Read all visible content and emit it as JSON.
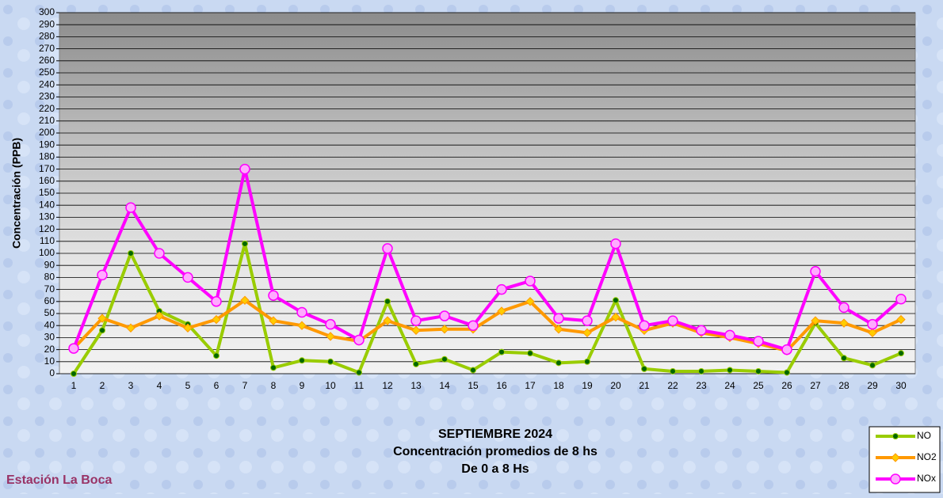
{
  "chart_data": {
    "type": "line",
    "title_lines": [
      "SEPTIEMBRE 2024",
      "Concentración promedios de 8 hs",
      "De 0 a 8 Hs"
    ],
    "annotation": "Estación La Boca",
    "y_label": "Concentración  (PPB)",
    "categories": [
      "1",
      "2",
      "3",
      "4",
      "5",
      "6",
      "7",
      "8",
      "9",
      "10",
      "11",
      "12",
      "13",
      "14",
      "15",
      "16",
      "17",
      "18",
      "19",
      "20",
      "21",
      "22",
      "23",
      "24",
      "25",
      "26",
      "27",
      "28",
      "29",
      "30"
    ],
    "series": [
      {
        "name": "NO",
        "color": "#99cc00",
        "marker": "circle",
        "marker_color": "#006600",
        "values": [
          0,
          36,
          100,
          52,
          41,
          15,
          108,
          5,
          11,
          10,
          1,
          60,
          8,
          12,
          3,
          18,
          17,
          9,
          10,
          61,
          4,
          2,
          2,
          3,
          2,
          1,
          42,
          13,
          7,
          17
        ]
      },
      {
        "name": "NO2",
        "color": "#ff9900",
        "marker": "diamond",
        "marker_color": "#ffcc00",
        "values": [
          21,
          46,
          38,
          48,
          38,
          45,
          61,
          44,
          40,
          31,
          27,
          44,
          36,
          37,
          37,
          52,
          60,
          37,
          34,
          47,
          36,
          42,
          34,
          30,
          25,
          19,
          44,
          42,
          34,
          45
        ]
      },
      {
        "name": "NOx",
        "color": "#ff00ff",
        "marker": "circle",
        "marker_color": "#ffaaff",
        "values": [
          21,
          82,
          138,
          100,
          80,
          60,
          170,
          65,
          51,
          41,
          28,
          104,
          44,
          48,
          40,
          70,
          77,
          46,
          44,
          108,
          40,
          44,
          36,
          32,
          27,
          20,
          85,
          55,
          41,
          62
        ]
      }
    ],
    "ylim": [
      0,
      300
    ],
    "yticks": [
      0,
      10,
      20,
      30,
      40,
      50,
      60,
      70,
      80,
      90,
      100,
      110,
      120,
      130,
      140,
      150,
      160,
      170,
      180,
      190,
      200,
      210,
      220,
      230,
      240,
      250,
      260,
      270,
      280,
      290,
      300
    ],
    "grid": true,
    "legend": "bottom-right"
  }
}
